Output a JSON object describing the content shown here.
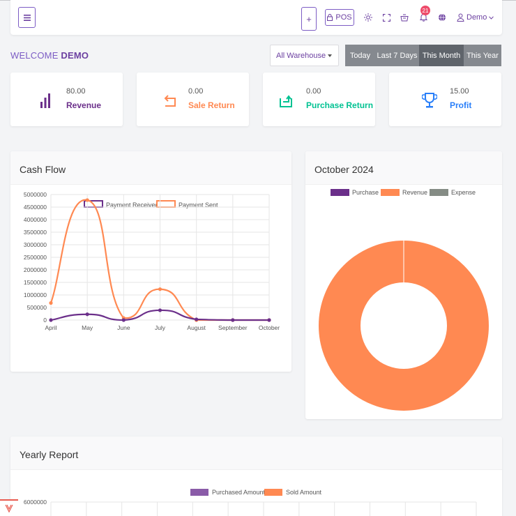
{
  "topbar": {
    "menu_icon": "hamburger-icon",
    "add_label": "+",
    "pos_label": "POS",
    "notification_count": "21",
    "user_label": "Demo",
    "icons": [
      "sun-icon",
      "fullscreen-icon",
      "basket-icon",
      "bell-icon",
      "globe-icon",
      "user-icon",
      "chevron-down-icon"
    ]
  },
  "welcome": {
    "prefix": "WELCOME",
    "name": "DEMO"
  },
  "warehouse_select": {
    "value": "All Warehouse"
  },
  "date_range": {
    "buttons": [
      "Today",
      "Last 7 Days",
      "This Month",
      "This Year"
    ],
    "active": "This Month"
  },
  "stats": [
    {
      "value": "80.00",
      "label": "Revenue",
      "color": "#6b2f8a",
      "icon": "bar-chart-icon"
    },
    {
      "value": "0.00",
      "label": "Sale Return",
      "color": "#ff8952",
      "icon": "return-arrow-icon"
    },
    {
      "value": "0.00",
      "label": "Purchase Return",
      "color": "#00c292",
      "icon": "refresh-box-icon"
    },
    {
      "value": "15.00",
      "label": "Profit",
      "color": "#297ff9",
      "icon": "trophy-icon"
    }
  ],
  "cashflow": {
    "title": "Cash Flow",
    "chart_data": {
      "type": "line",
      "categories": [
        "April",
        "May",
        "June",
        "July",
        "August",
        "September",
        "October"
      ],
      "series": [
        {
          "name": "Payment Received",
          "color": "#6b2f8a",
          "values": [
            0,
            230000,
            0,
            390000,
            30000,
            0,
            0
          ]
        },
        {
          "name": "Payment Sent",
          "color": "#ff8952",
          "values": [
            680000,
            4780000,
            80000,
            1230000,
            0,
            0,
            0
          ]
        }
      ],
      "yticks": [
        "5000000",
        "4500000",
        "4000000",
        "3500000",
        "3000000",
        "2500000",
        "2000000",
        "1500000",
        "1000000",
        "500000",
        "0"
      ],
      "ylim": [
        0,
        5000000
      ],
      "legend": "top",
      "grid": true
    }
  },
  "month_chart": {
    "title": "October 2024",
    "chart_data": {
      "type": "pie",
      "categories": [
        "Purchase",
        "Revenue",
        "Expense"
      ],
      "colors": [
        "#6b2f8a",
        "#ff8952",
        "#858c85"
      ],
      "values": [
        0,
        80,
        0
      ],
      "legend": "top"
    }
  },
  "yearly": {
    "title": "Yearly Report",
    "chart_data": {
      "type": "bar",
      "series": [
        {
          "name": "Purchased Amount",
          "color": "#8a5ba8"
        },
        {
          "name": "Sold Amount",
          "color": "#ff8952"
        }
      ],
      "yticks": [
        "6000000"
      ],
      "legend": "top"
    }
  }
}
